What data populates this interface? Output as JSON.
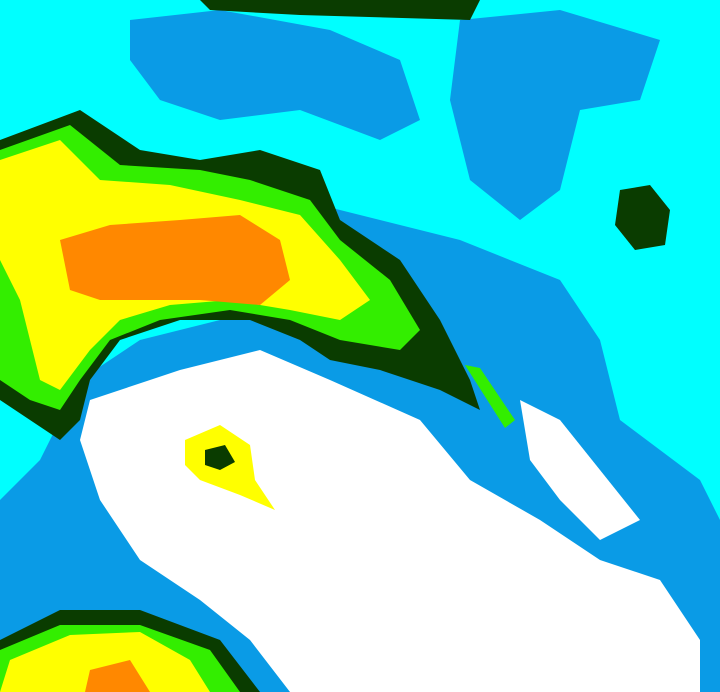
{
  "image": {
    "kind": "enhanced-satellite-imagery",
    "palette": {
      "background": "#00ffff",
      "blue": "#0a9be6",
      "white": "#ffffff",
      "dark_green": "#0a3c00",
      "green": "#33ee00",
      "yellow": "#ffff00",
      "orange": "#ff8800"
    }
  }
}
